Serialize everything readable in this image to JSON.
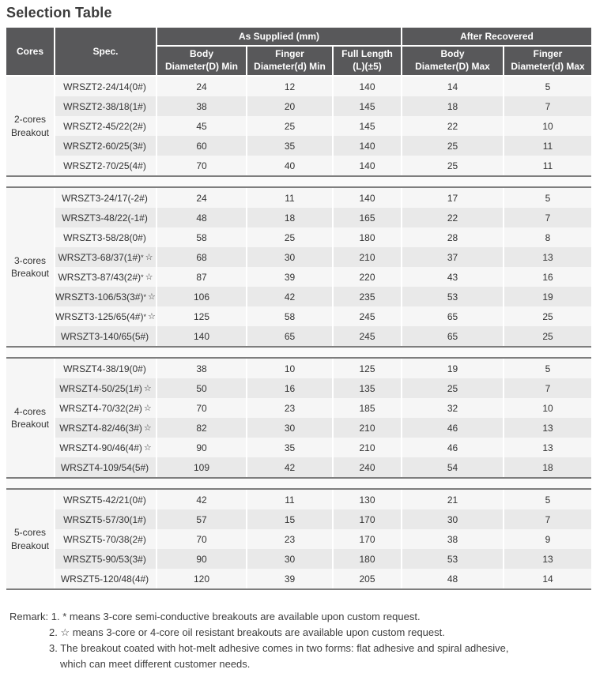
{
  "title": "Selection Table",
  "table": {
    "header": {
      "cores": "Cores",
      "spec": "Spec.",
      "as_supplied": "As Supplied (mm)",
      "after_recovered": "After Recovered",
      "body_min": {
        "l1": "Body",
        "l2": "Diameter(D) Min"
      },
      "finger_min": {
        "l1": "Finger",
        "l2": "Diameter(d) Min"
      },
      "full_length": {
        "l1": "Full Length",
        "l2": "(L)(±5)"
      },
      "body_max": {
        "l1": "Body",
        "l2": "Diameter(D) Max"
      },
      "finger_max": {
        "l1": "Finger",
        "l2": "Diameter(d) Max"
      }
    },
    "sections": [
      {
        "cores_l1": "2-cores",
        "cores_l2": "Breakout",
        "rows": [
          {
            "spec": "WRSZT2-24/14(0#)",
            "sup": "",
            "star": "",
            "values": [
              "24",
              "12",
              "140",
              "14",
              "5"
            ]
          },
          {
            "spec": "WRSZT2-38/18(1#)",
            "sup": "",
            "star": "",
            "values": [
              "38",
              "20",
              "145",
              "18",
              "7"
            ]
          },
          {
            "spec": "WRSZT2-45/22(2#)",
            "sup": "",
            "star": "",
            "values": [
              "45",
              "25",
              "145",
              "22",
              "10"
            ]
          },
          {
            "spec": "WRSZT2-60/25(3#)",
            "sup": "",
            "star": "",
            "values": [
              "60",
              "35",
              "140",
              "25",
              "11"
            ]
          },
          {
            "spec": "WRSZT2-70/25(4#)",
            "sup": "",
            "star": "",
            "values": [
              "70",
              "40",
              "140",
              "25",
              "11"
            ]
          }
        ]
      },
      {
        "cores_l1": "3-cores",
        "cores_l2": "Breakout",
        "rows": [
          {
            "spec": "WRSZT3-24/17(-2#)",
            "sup": "",
            "star": "",
            "values": [
              "24",
              "11",
              "140",
              "17",
              "5"
            ]
          },
          {
            "spec": "WRSZT3-48/22(-1#)",
            "sup": "",
            "star": "",
            "values": [
              "48",
              "18",
              "165",
              "22",
              "7"
            ]
          },
          {
            "spec": "WRSZT3-58/28(0#)",
            "sup": "",
            "star": "",
            "values": [
              "58",
              "25",
              "180",
              "28",
              "8"
            ]
          },
          {
            "spec": "WRSZT3-68/37(1#)",
            "sup": "*",
            "star": "☆",
            "values": [
              "68",
              "30",
              "210",
              "37",
              "13"
            ]
          },
          {
            "spec": "WRSZT3-87/43(2#)",
            "sup": "*",
            "star": "☆",
            "values": [
              "87",
              "39",
              "220",
              "43",
              "16"
            ]
          },
          {
            "spec": "WRSZT3-106/53(3#)",
            "sup": "*",
            "star": "☆",
            "values": [
              "106",
              "42",
              "235",
              "53",
              "19"
            ]
          },
          {
            "spec": "WRSZT3-125/65(4#)",
            "sup": "*",
            "star": "☆",
            "values": [
              "125",
              "58",
              "245",
              "65",
              "25"
            ]
          },
          {
            "spec": "WRSZT3-140/65(5#)",
            "sup": "",
            "star": "",
            "values": [
              "140",
              "65",
              "245",
              "65",
              "25"
            ]
          }
        ]
      },
      {
        "cores_l1": "4-cores",
        "cores_l2": "Breakout",
        "rows": [
          {
            "spec": "WRSZT4-38/19(0#)",
            "sup": "",
            "star": "",
            "values": [
              "38",
              "10",
              "125",
              "19",
              "5"
            ]
          },
          {
            "spec": "WRSZT4-50/25(1#)",
            "sup": "",
            "star": "☆",
            "values": [
              "50",
              "16",
              "135",
              "25",
              "7"
            ]
          },
          {
            "spec": "WRSZT4-70/32(2#)",
            "sup": "",
            "star": "☆",
            "values": [
              "70",
              "23",
              "185",
              "32",
              "10"
            ]
          },
          {
            "spec": "WRSZT4-82/46(3#)",
            "sup": "",
            "star": "☆",
            "values": [
              "82",
              "30",
              "210",
              "46",
              "13"
            ]
          },
          {
            "spec": "WRSZT4-90/46(4#)",
            "sup": "",
            "star": "☆",
            "values": [
              "90",
              "35",
              "210",
              "46",
              "13"
            ]
          },
          {
            "spec": "WRSZT4-109/54(5#)",
            "sup": "",
            "star": "",
            "values": [
              "109",
              "42",
              "240",
              "54",
              "18"
            ]
          }
        ]
      },
      {
        "cores_l1": "5-cores",
        "cores_l2": "Breakout",
        "rows": [
          {
            "spec": "WRSZT5-42/21(0#)",
            "sup": "",
            "star": "",
            "values": [
              "42",
              "11",
              "130",
              "21",
              "5"
            ]
          },
          {
            "spec": "WRSZT5-57/30(1#)",
            "sup": "",
            "star": "",
            "values": [
              "57",
              "15",
              "170",
              "30",
              "7"
            ]
          },
          {
            "spec": "WRSZT5-70/38(2#)",
            "sup": "",
            "star": "",
            "values": [
              "70",
              "23",
              "170",
              "38",
              "9"
            ]
          },
          {
            "spec": "WRSZT5-90/53(3#)",
            "sup": "",
            "star": "",
            "values": [
              "90",
              "30",
              "180",
              "53",
              "13"
            ]
          },
          {
            "spec": "WRSZT5-120/48(4#)",
            "sup": "",
            "star": "",
            "values": [
              "120",
              "39",
              "205",
              "48",
              "14"
            ]
          }
        ]
      }
    ]
  },
  "remark": {
    "label": "Remark:",
    "item1_num": "1.",
    "item1_text": "* means 3-core semi-conductive breakouts are available upon custom request.",
    "item2_num": "2.",
    "item2_text": "☆ means 3-core or 4-core oil resistant breakouts are available upon custom request.",
    "item3_num": "3.",
    "item3_text": "The breakout coated with hot-melt adhesive comes in two forms: flat adhesive and  spiral adhesive,",
    "item3_text2": "which can meet different customer needs."
  }
}
